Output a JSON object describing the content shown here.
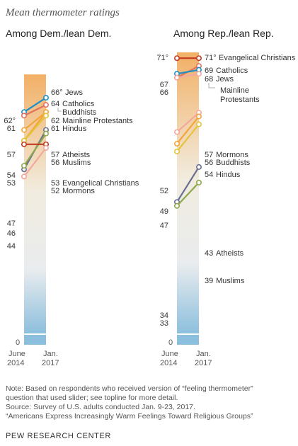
{
  "chart_data": {
    "type": "line",
    "title": "Mean thermometer ratings",
    "x_labels": [
      [
        "June",
        "2014"
      ],
      [
        "Jan.",
        "2017"
      ]
    ],
    "zero_label": "0",
    "degree": "°",
    "panels": [
      {
        "title": "Among Dem./lean Dem.",
        "series": [
          {
            "name": "Jews",
            "v2014": 62,
            "v2017": 66,
            "color": "#1f8fc4",
            "deg14": true,
            "deg17": true
          },
          {
            "name": "Catholics",
            "v2014": 61,
            "v2017": 64,
            "color": "#e4715e",
            "deg14": false,
            "deg17": false
          },
          {
            "name": "Buddhists",
            "v2014": 57,
            "v2017": 62,
            "color": "#f3a53a",
            "deg14": false,
            "deg17": false
          },
          {
            "name": "Mainline Protestants",
            "v2014": 54,
            "v2017": 62,
            "color": "#f3a53a",
            "deg14": false,
            "deg17": false
          },
          {
            "name": "Hindus",
            "v2014": 54,
            "v2017": 61,
            "color": "#e3c43a",
            "deg14": false,
            "deg17": false
          },
          {
            "name": "Atheists",
            "v2014": 46,
            "v2017": 57,
            "color": "#6a6f92",
            "deg14": false,
            "deg17": false
          },
          {
            "name": "Muslims",
            "v2014": 47,
            "v2017": 56,
            "color": "#8ea84d",
            "deg14": false,
            "deg17": false
          },
          {
            "name": "Evangelical Christians",
            "v2014": 53,
            "v2017": 53,
            "color": "#c23b22",
            "deg14": false,
            "deg17": false
          },
          {
            "name": "Mormons",
            "v2014": 44,
            "v2017": 52,
            "color": "#f2a99b",
            "deg14": false,
            "deg17": false
          }
        ],
        "left_labels": [
          "62",
          "61",
          "57",
          "54",
          "53",
          "47",
          "46",
          "44"
        ],
        "right_labels": [
          {
            "num": "66",
            "name": "Jews",
            "deg": true
          },
          {
            "num": "64",
            "name": "Catholics",
            "deg": false
          },
          {
            "num": "",
            "name": "Buddhists",
            "deg": false
          },
          {
            "num": "62",
            "name": "Mainline Protestants",
            "deg": false
          },
          {
            "num": "61",
            "name": "Hindus",
            "deg": false
          },
          {
            "num": "57",
            "name": "Atheists",
            "deg": false
          },
          {
            "num": "56",
            "name": "Muslims",
            "deg": false
          },
          {
            "num": "53",
            "name": "Evangelical Christians",
            "deg": false
          },
          {
            "num": "52",
            "name": "Mormons",
            "deg": false
          }
        ]
      },
      {
        "title": "Among Rep./lean Rep.",
        "series": [
          {
            "name": "Evangelical Christians",
            "v2014": 71,
            "v2017": 71,
            "color": "#c23b22",
            "deg14": true,
            "deg17": true
          },
          {
            "name": "Catholics",
            "v2014": 66,
            "v2017": 69,
            "color": "#e4715e",
            "deg14": false,
            "deg17": false
          },
          {
            "name": "Jews",
            "v2014": 67,
            "v2017": 68,
            "color": "#1f8fc4",
            "deg14": false,
            "deg17": false
          },
          {
            "name": "Mainline Protestants",
            "v2014": 66,
            "v2017": 67,
            "color": "#f2a99b",
            "deg14": false,
            "deg17": false
          },
          {
            "name": "Mormons",
            "v2014": 52,
            "v2017": 57,
            "color": "#f2a99b",
            "deg14": false,
            "deg17": false
          },
          {
            "name": "Buddhists",
            "v2014": 49,
            "v2017": 56,
            "color": "#f3a53a",
            "deg14": false,
            "deg17": false
          },
          {
            "name": "Hindus",
            "v2014": 47,
            "v2017": 54,
            "color": "#e3c43a",
            "deg14": false,
            "deg17": false
          },
          {
            "name": "Atheists",
            "v2014": 34,
            "v2017": 43,
            "color": "#6a6f92",
            "deg14": false,
            "deg17": false
          },
          {
            "name": "Muslims",
            "v2014": 33,
            "v2017": 39,
            "color": "#8ea84d",
            "deg14": false,
            "deg17": false
          }
        ],
        "left_labels": [
          "71",
          "67",
          "66",
          "52",
          "49",
          "47",
          "34",
          "33"
        ],
        "right_labels": [
          {
            "num": "71",
            "name": "Evangelical Christians",
            "deg": true
          },
          {
            "num": "69",
            "name": "Catholics",
            "deg": false
          },
          {
            "num": "68",
            "name": "Jews",
            "deg": false
          },
          {
            "num": "",
            "name": "Mainline",
            "deg": false
          },
          {
            "num": "",
            "name": "Protestants",
            "deg": false
          },
          {
            "num": "57",
            "name": "Mormons",
            "deg": false
          },
          {
            "num": "56",
            "name": "Buddhists",
            "deg": false
          },
          {
            "num": "54",
            "name": "Hindus",
            "deg": false
          },
          {
            "num": "43",
            "name": "Atheists",
            "deg": false
          },
          {
            "num": "39",
            "name": "Muslims",
            "deg": false
          }
        ]
      }
    ]
  },
  "footer": {
    "note1": "Note: Based on respondents who received version of “feeling thermometer”",
    "note2": "question that used slider; see topline for more detail.",
    "source": "Source: Survey of U.S. adults conducted Jan. 9-23, 2017.",
    "report": "“Americans Express Increasingly Warm  Feelings Toward Religious Groups”",
    "brand": "PEW RESEARCH CENTER"
  },
  "colors": {
    "gradient_top": "#f2b066",
    "gradient_mid": "#f1ecdf",
    "gradient_bottom": "#8cbfdd"
  }
}
